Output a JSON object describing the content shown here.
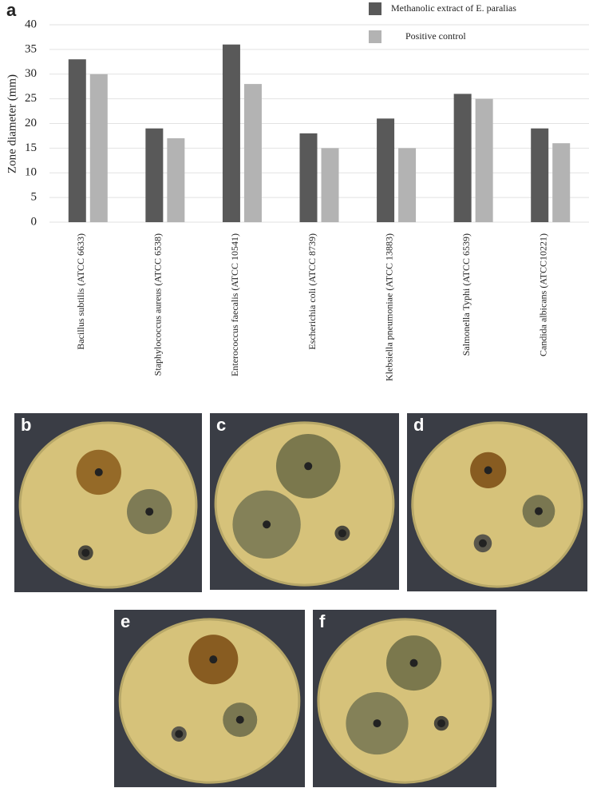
{
  "chart_data": {
    "type": "bar",
    "panel_label": "a",
    "ylabel": "Zone diameter (mm)",
    "categories": [
      "Bacillus subtilis (ATCC 6633)",
      "Staphylococcus aureus (ATCC 6538)",
      "Enterococcus faecalis (ATCC 10541)",
      "Escherichia coli (ATCC 8739)",
      "Klebsiella pneumoniae (ATCC 13883)",
      "Salmonella Typhi (ATCC 6539)",
      "Candida albicans (ATCC10221)"
    ],
    "series": [
      {
        "name": "Methanolic extract of E. paralias",
        "color": "#595959",
        "values": [
          33,
          19,
          36,
          18,
          21,
          26,
          19
        ]
      },
      {
        "name": "Positive control",
        "color": "#b3b3b3",
        "values": [
          30,
          17,
          28,
          15,
          15,
          25,
          16
        ]
      }
    ],
    "ylim": [
      0,
      40
    ],
    "yticks": [
      0,
      5,
      10,
      15,
      20,
      25,
      30,
      35,
      40
    ],
    "grid": true,
    "legend": "top-right"
  },
  "photos": {
    "labels": [
      "b",
      "c",
      "d",
      "e",
      "f"
    ]
  }
}
